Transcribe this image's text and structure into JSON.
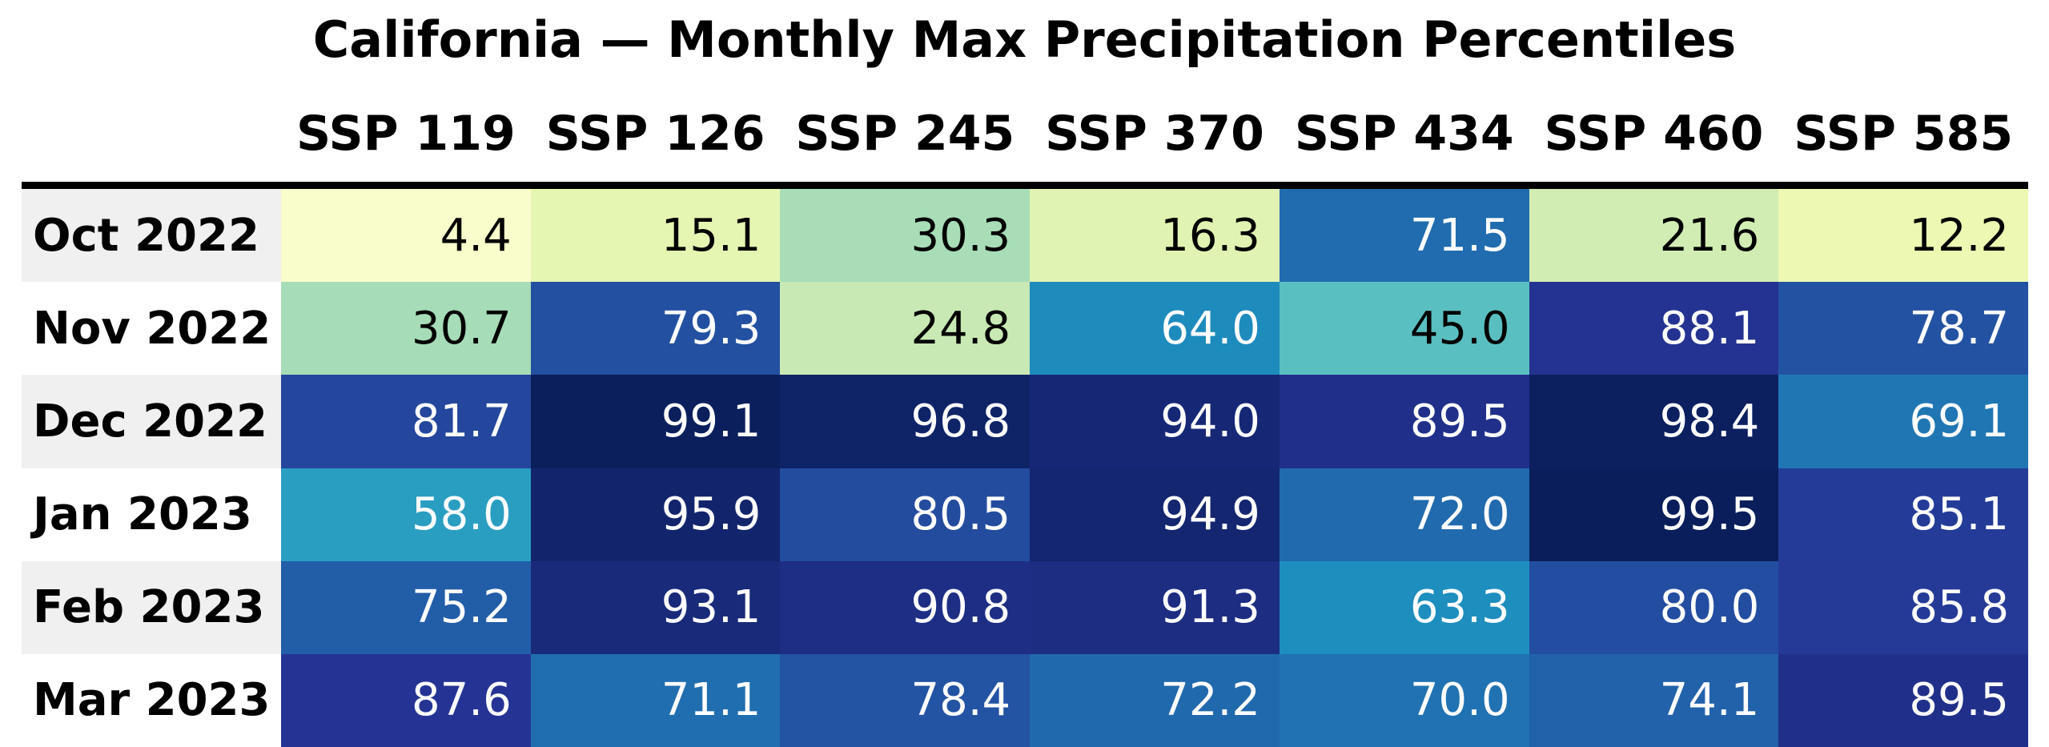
{
  "title": "California — Monthly Max Precipitation Percentiles",
  "chart_data": {
    "type": "heatmap",
    "title": "California — Monthly Max Precipitation Percentiles",
    "columns": [
      "SSP 119",
      "SSP 126",
      "SSP 245",
      "SSP 370",
      "SSP 434",
      "SSP 460",
      "SSP 585"
    ],
    "rows": [
      "Oct 2022",
      "Nov 2022",
      "Dec 2022",
      "Jan 2023",
      "Feb 2023",
      "Mar 2023"
    ],
    "values": [
      [
        4.4,
        15.1,
        30.3,
        16.3,
        71.5,
        21.6,
        12.2
      ],
      [
        30.7,
        79.3,
        24.8,
        64.0,
        45.0,
        88.1,
        78.7
      ],
      [
        81.7,
        99.1,
        96.8,
        94.0,
        89.5,
        98.4,
        69.1
      ],
      [
        58.0,
        95.9,
        80.5,
        94.9,
        72.0,
        99.5,
        85.1
      ],
      [
        75.2,
        93.1,
        90.8,
        91.3,
        63.3,
        80.0,
        85.8
      ],
      [
        87.6,
        71.1,
        78.4,
        72.2,
        70.0,
        74.1,
        89.5
      ]
    ],
    "value_decimals": 1,
    "vmin": 0,
    "vmax": 100,
    "colormap": {
      "name": "YlGnBu",
      "stops": [
        "#ffffd9",
        "#edf8b1",
        "#c7e9b4",
        "#7fcdbb",
        "#41b6c4",
        "#1d91c0",
        "#225ea8",
        "#253494",
        "#081d58"
      ]
    },
    "legend": "none",
    "grid": "off",
    "colors": {
      "background": "#ffffff",
      "header_rule": "#000000",
      "row_label_stripe": "#f0f0f0",
      "row_label_plain": "#ffffff",
      "cell_text_dark": "#000000",
      "cell_text_light": "#ffffff",
      "heading_text": "#000000"
    }
  }
}
